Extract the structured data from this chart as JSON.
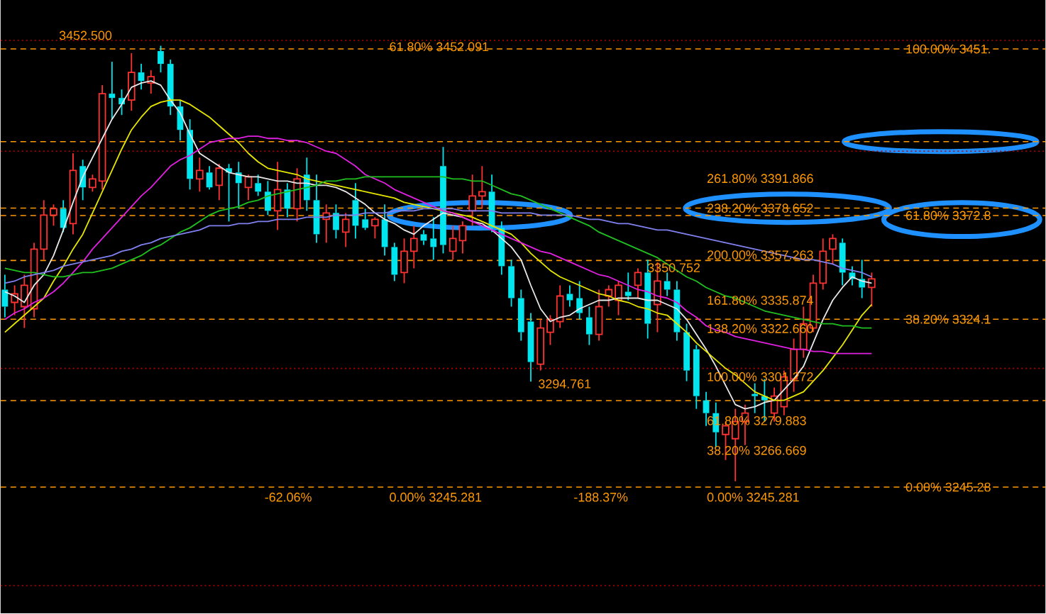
{
  "chart_data": {
    "type": "candlestick",
    "categories": [
      null,
      null,
      null,
      null,
      null,
      null,
      null,
      null,
      null,
      null,
      null,
      null,
      null,
      null,
      null,
      null,
      null,
      null,
      null,
      null,
      null,
      null,
      null,
      null,
      null,
      null,
      null,
      null,
      null,
      null,
      null,
      null,
      null,
      null,
      null,
      null,
      null,
      null,
      null,
      null,
      null,
      null,
      null,
      null,
      null,
      null,
      null,
      null,
      null,
      null,
      null,
      null,
      null,
      null,
      null,
      null,
      null,
      null,
      null,
      null,
      null,
      null,
      null,
      null,
      null,
      null,
      null,
      null,
      null,
      null,
      null,
      null,
      null,
      null,
      null,
      null,
      null,
      null,
      null,
      null,
      null,
      null,
      null,
      null,
      null,
      null,
      null,
      null,
      null,
      null
    ],
    "ohlc": [
      [
        3338,
        3345,
        3325,
        3330
      ],
      [
        3332,
        3340,
        3326,
        3336
      ],
      [
        3330,
        3345,
        3320,
        3340
      ],
      [
        3329,
        3360,
        3325,
        3357
      ],
      [
        3357,
        3380,
        3352,
        3373
      ],
      [
        3373,
        3378,
        3368,
        3376
      ],
      [
        3376,
        3380,
        3365,
        3367
      ],
      [
        3369,
        3402,
        3364,
        3394
      ],
      [
        3396,
        3399,
        3380,
        3386
      ],
      [
        3386,
        3392,
        3384,
        3390
      ],
      [
        3389,
        3434,
        3385,
        3430
      ],
      [
        3430,
        3445,
        3418,
        3428
      ],
      [
        3428,
        3432,
        3420,
        3425
      ],
      [
        3427,
        3449,
        3422,
        3440
      ],
      [
        3440,
        3444,
        3432,
        3436
      ],
      [
        3435,
        3441,
        3430,
        3438
      ],
      [
        3450,
        3452.5,
        3440,
        3444
      ],
      [
        3444,
        3446,
        3420,
        3424
      ],
      [
        3424,
        3427,
        3408,
        3413
      ],
      [
        3413,
        3418,
        3385,
        3390
      ],
      [
        3390,
        3400,
        3384,
        3394
      ],
      [
        3393,
        3396,
        3385,
        3386
      ],
      [
        3387,
        3397,
        3380,
        3395
      ],
      [
        3395,
        3397,
        3370,
        3393
      ],
      [
        3393,
        3398,
        3376,
        3388
      ],
      [
        3386,
        3392,
        3380,
        3391
      ],
      [
        3388,
        3392,
        3382,
        3384
      ],
      [
        3384,
        3389,
        3373,
        3375
      ],
      [
        3375,
        3398,
        3366,
        3385
      ],
      [
        3385,
        3388,
        3372,
        3376
      ],
      [
        3376,
        3395,
        3370,
        3390
      ],
      [
        3392,
        3400,
        3375,
        3380
      ],
      [
        3380,
        3392,
        3360,
        3364
      ],
      [
        3371,
        3378,
        3360,
        3374
      ],
      [
        3374,
        3378,
        3362,
        3366
      ],
      [
        3365,
        3374,
        3358,
        3371
      ],
      [
        3380,
        3388,
        3362,
        3368
      ],
      [
        3371,
        3376,
        3366,
        3367
      ],
      [
        3368,
        3372,
        3362,
        3371
      ],
      [
        3371,
        3378,
        3354,
        3358
      ],
      [
        3358,
        3360,
        3342,
        3345
      ],
      [
        3346,
        3362,
        3341,
        3356
      ],
      [
        3356,
        3368,
        3348,
        3362
      ],
      [
        3364,
        3366,
        3359,
        3361
      ],
      [
        3362,
        3372,
        3352,
        3358
      ],
      [
        3396,
        3405,
        3355,
        3359
      ],
      [
        3356,
        3368,
        3352,
        3362
      ],
      [
        3361,
        3370,
        3355,
        3368
      ],
      [
        3375,
        3392,
        3368,
        3382
      ],
      [
        3382,
        3396,
        3376,
        3384
      ],
      [
        3384,
        3392,
        3365,
        3367
      ],
      [
        3367,
        3370,
        3345,
        3349
      ],
      [
        3349,
        3352,
        3330,
        3334
      ],
      [
        3334,
        3338,
        3314,
        3318
      ],
      [
        3323,
        3327,
        3294.761,
        3304
      ],
      [
        3303,
        3324,
        3300,
        3320
      ],
      [
        3318,
        3326,
        3312,
        3324
      ],
      [
        3323,
        3340,
        3320,
        3335
      ],
      [
        3336,
        3340,
        3330,
        3333
      ],
      [
        3334,
        3342,
        3324,
        3327
      ],
      [
        3325,
        3330,
        3312,
        3317
      ],
      [
        3317,
        3338,
        3314,
        3330
      ],
      [
        3335,
        3340,
        3330,
        3338
      ],
      [
        3333,
        3342,
        3326,
        3340
      ],
      [
        3337,
        3346,
        3333,
        3335
      ],
      [
        3340,
        3348,
        3334,
        3346
      ],
      [
        3346,
        3352,
        3315,
        3322
      ],
      [
        3331,
        3350.752,
        3318,
        3342
      ],
      [
        3342,
        3346,
        3335,
        3338
      ],
      [
        3338,
        3342,
        3314,
        3318
      ],
      [
        3318,
        3322,
        3295,
        3300
      ],
      [
        3310,
        3312,
        3282,
        3288
      ],
      [
        3286,
        3290,
        3274,
        3280
      ],
      [
        3280,
        3285,
        3264,
        3271
      ],
      [
        3270,
        3276,
        3258,
        3274
      ],
      [
        3268,
        3282,
        3248,
        3276
      ],
      [
        3276,
        3284,
        3265,
        3280
      ],
      [
        3289,
        3294,
        3280,
        3288
      ],
      [
        3288,
        3296,
        3276,
        3286
      ],
      [
        3280,
        3292,
        3276,
        3288
      ],
      [
        3283,
        3300,
        3279,
        3297
      ],
      [
        3296,
        3315,
        3290,
        3310
      ],
      [
        3310,
        3330,
        3306,
        3322
      ],
      [
        3320,
        3345,
        3318,
        3341
      ],
      [
        3341,
        3362,
        3338,
        3356
      ],
      [
        3357,
        3364,
        3350,
        3362
      ],
      [
        3360,
        3362,
        3340,
        3346
      ],
      [
        3346,
        3349,
        3340,
        3343
      ],
      [
        3343,
        3352,
        3334,
        3339
      ],
      [
        3339,
        3346,
        3330,
        3343
      ]
    ],
    "colors": [
      "#00e5ee",
      "#ff3232",
      "#ff3232",
      "#ff3232",
      "#ff3232",
      "#ff3232",
      "#00e5ee",
      "#ff3232",
      "#00e5ee",
      "#ff3232",
      "#ff3232",
      "#00e5ee",
      "#00e5ee",
      "#ff3232",
      "#00e5ee",
      "#ff3232",
      "#00e5ee",
      "#00e5ee",
      "#00e5ee",
      "#00e5ee",
      "#ff3232",
      "#00e5ee",
      "#ff3232",
      "#00e5ee",
      "#00e5ee",
      "#ff3232",
      "#00e5ee",
      "#00e5ee",
      "#ff3232",
      "#00e5ee",
      "#ff3232",
      "#00e5ee",
      "#00e5ee",
      "#ff3232",
      "#00e5ee",
      "#ff3232",
      "#00e5ee",
      "#00e5ee",
      "#ff3232",
      "#00e5ee",
      "#00e5ee",
      "#ff3232",
      "#ff3232",
      "#00e5ee",
      "#00e5ee",
      "#00e5ee",
      "#ff3232",
      "#ff3232",
      "#ff3232",
      "#ff3232",
      "#00e5ee",
      "#00e5ee",
      "#00e5ee",
      "#00e5ee",
      "#00e5ee",
      "#ff3232",
      "#ff3232",
      "#ff3232",
      "#00e5ee",
      "#00e5ee",
      "#00e5ee",
      "#ff3232",
      "#ff3232",
      "#ff3232",
      "#00e5ee",
      "#ff3232",
      "#00e5ee",
      "#ff3232",
      "#00e5ee",
      "#00e5ee",
      "#00e5ee",
      "#00e5ee",
      "#00e5ee",
      "#00e5ee",
      "#ff3232",
      "#ff3232",
      "#ff3232",
      "#00e5ee",
      "#00e5ee",
      "#ff3232",
      "#ff3232",
      "#ff3232",
      "#ff3232",
      "#ff3232",
      "#ff3232",
      "#ff3232",
      "#00e5ee",
      "#00e5ee",
      "#00e5ee",
      "#ff3232"
    ],
    "ylim": [
      3186,
      3474
    ],
    "tick_labels": false,
    "series": [
      {
        "type": "line",
        "color": "#e8e8e8",
        "values": [
          3337,
          3335,
          3332,
          3340,
          3345,
          3354,
          3366,
          3379,
          3391,
          3400,
          3409,
          3418,
          3425,
          3433,
          3435,
          3436,
          3434,
          3427,
          3421,
          3411,
          3402,
          3399,
          3396,
          3393,
          3392,
          3391,
          3391,
          3390,
          3389,
          3389,
          3388,
          3388,
          3387,
          3387,
          3386,
          3384,
          3381,
          3378,
          3374,
          3371,
          3369,
          3366,
          3364,
          3368,
          3371,
          3374,
          3373,
          3372,
          3370,
          3369,
          3366,
          3362,
          3358,
          3352,
          3340,
          3329,
          3323,
          3325,
          3326,
          3329,
          3331,
          3333,
          3333,
          3334,
          3334,
          3334,
          3333,
          3333,
          3331,
          3329,
          3324,
          3317,
          3310,
          3302,
          3293,
          3284,
          3282,
          3283,
          3285,
          3286,
          3291,
          3296,
          3302,
          3313,
          3324,
          3333,
          3339,
          3344,
          3342,
          3341
        ]
      },
      {
        "type": "line",
        "color": "#e6e600",
        "values": [
          3318,
          3322,
          3326,
          3330,
          3334,
          3342,
          3349,
          3357,
          3364,
          3374,
          3384,
          3394,
          3404,
          3413,
          3419,
          3424,
          3426,
          3427,
          3427,
          3425,
          3422,
          3419,
          3415,
          3411,
          3407,
          3402,
          3398,
          3395,
          3394,
          3393,
          3392,
          3390,
          3389,
          3388,
          3387,
          3386,
          3385,
          3384,
          3383,
          3382,
          3381,
          3379,
          3378,
          3377,
          3376,
          3375,
          3374,
          3373,
          3372,
          3370,
          3368,
          3366,
          3364,
          3360,
          3355,
          3351,
          3347,
          3344,
          3342,
          3340,
          3338,
          3336,
          3335,
          3333,
          3332,
          3330,
          3329,
          3327,
          3326,
          3322,
          3318,
          3313,
          3309,
          3305,
          3301,
          3298,
          3294,
          3290,
          3288,
          3286,
          3286,
          3288,
          3290,
          3295,
          3300,
          3306,
          3312,
          3319,
          3326,
          3331
        ]
      },
      {
        "type": "line",
        "color": "#e020e0",
        "values": [
          3324,
          3327,
          3329,
          3332,
          3334,
          3337,
          3341,
          3346,
          3351,
          3357,
          3362,
          3367,
          3372,
          3377,
          3382,
          3386,
          3391,
          3396,
          3399,
          3401,
          3404,
          3407,
          3408,
          3409,
          3409,
          3410,
          3410,
          3409,
          3409,
          3408,
          3408,
          3407,
          3405,
          3403,
          3402,
          3399,
          3396,
          3392,
          3390,
          3388,
          3385,
          3383,
          3381,
          3379,
          3377,
          3375,
          3374,
          3372,
          3370,
          3368,
          3366,
          3364,
          3362,
          3360,
          3358,
          3356,
          3355,
          3353,
          3351,
          3349,
          3347,
          3345,
          3344,
          3342,
          3340,
          3338,
          3337,
          3335,
          3334,
          3332,
          3328,
          3325,
          3321,
          3319,
          3318,
          3316,
          3315,
          3314,
          3313,
          3312,
          3311,
          3310,
          3310,
          3309,
          3309,
          3308,
          3308,
          3308,
          3308,
          3308
        ]
      },
      {
        "type": "line",
        "color": "#20c020",
        "values": [
          3348,
          3347,
          3346,
          3346,
          3345,
          3344,
          3344,
          3345,
          3346,
          3346,
          3347,
          3348,
          3350,
          3352,
          3354,
          3357,
          3359,
          3362,
          3365,
          3367,
          3370,
          3373,
          3375,
          3376,
          3377,
          3379,
          3380,
          3382,
          3383,
          3384,
          3385,
          3386,
          3387,
          3389,
          3389,
          3390,
          3390,
          3391,
          3391,
          3391,
          3391,
          3391,
          3391,
          3391,
          3391,
          3391,
          3390,
          3390,
          3389,
          3389,
          3387,
          3385,
          3383,
          3382,
          3380,
          3378,
          3376,
          3374,
          3372,
          3370,
          3368,
          3365,
          3363,
          3361,
          3359,
          3357,
          3355,
          3353,
          3350,
          3347,
          3344,
          3342,
          3339,
          3337,
          3335,
          3334,
          3332,
          3330,
          3328,
          3327,
          3326,
          3325,
          3324,
          3323,
          3322,
          3322,
          3321,
          3321,
          3320,
          3320
        ]
      },
      {
        "type": "line",
        "color": "#8080f0",
        "values": [
          3341,
          3342,
          3344,
          3345,
          3346,
          3347,
          3349,
          3350,
          3351,
          3352,
          3353,
          3354,
          3356,
          3357,
          3359,
          3360,
          3362,
          3363,
          3364,
          3365,
          3366,
          3368,
          3368,
          3368,
          3369,
          3369,
          3370,
          3370,
          3371,
          3371,
          3371,
          3372,
          3372,
          3372,
          3373,
          3373,
          3373,
          3374,
          3374,
          3374,
          3375,
          3375,
          3375,
          3376,
          3376,
          3376,
          3376,
          3375,
          3375,
          3375,
          3375,
          3374,
          3374,
          3374,
          3374,
          3373,
          3373,
          3373,
          3373,
          3372,
          3371,
          3371,
          3370,
          3369,
          3369,
          3368,
          3367,
          3366,
          3366,
          3365,
          3364,
          3363,
          3362,
          3361,
          3360,
          3359,
          3358,
          3357,
          3356,
          3355,
          3354,
          3353,
          3352,
          3352,
          3351,
          3350,
          3348,
          3347,
          3346,
          3344
        ]
      }
    ],
    "ref_lines": [
      {
        "axis": "y",
        "value": 3451,
        "label": "100.00%   3451.",
        "color": "#ff9900",
        "line_style": "dashed"
      },
      {
        "axis": "y",
        "value": 3407.5,
        "color": "#ff9900",
        "line_style": "dashed"
      },
      {
        "axis": "y",
        "value": 3376.3,
        "color": "#ff9900",
        "line_style": "dashed"
      },
      {
        "axis": "y",
        "value": 3372.8,
        "label": "61.80%   3372.8",
        "color": "#ff9900",
        "line_style": "dashed"
      },
      {
        "axis": "y",
        "value": 3351.7,
        "color": "#ff9900",
        "line_style": "dashed"
      },
      {
        "axis": "y",
        "value": 3324.1,
        "label": "38.20%   3324.1",
        "color": "#ff9900",
        "line_style": "dashed"
      },
      {
        "axis": "y",
        "value": 3285.9,
        "color": "#ff9900",
        "line_style": "dashed"
      },
      {
        "axis": "y",
        "value": 3245.28,
        "label": "0.00%   3245.28",
        "color": "#ff9900",
        "line_style": "dashed"
      },
      {
        "axis": "y",
        "value": 3455,
        "color": "#c00000",
        "line_style": "dotted"
      },
      {
        "axis": "y",
        "value": 3403,
        "color": "#c00000",
        "line_style": "dotted"
      },
      {
        "axis": "y",
        "value": 3301,
        "color": "#c00000",
        "line_style": "dotted"
      },
      {
        "axis": "y",
        "value": 3199,
        "color": "#c00000",
        "line_style": "dotted"
      }
    ],
    "annotations": [
      "3452.500",
      "61.80%   3452.091",
      "3350.752",
      "3294.761",
      "261.80%   3391.866",
      "238.20%   3378.652",
      "200.00%   3357.263",
      "161.80%   3335.874",
      "138.20%   3322.660",
      "100.00%   3301.272",
      "61.80%   3279.883",
      "38.20%   3266.669",
      "-62.06%",
      "0.00%   3245.281",
      "-188.37%",
      "0.00%   3245.281"
    ]
  }
}
